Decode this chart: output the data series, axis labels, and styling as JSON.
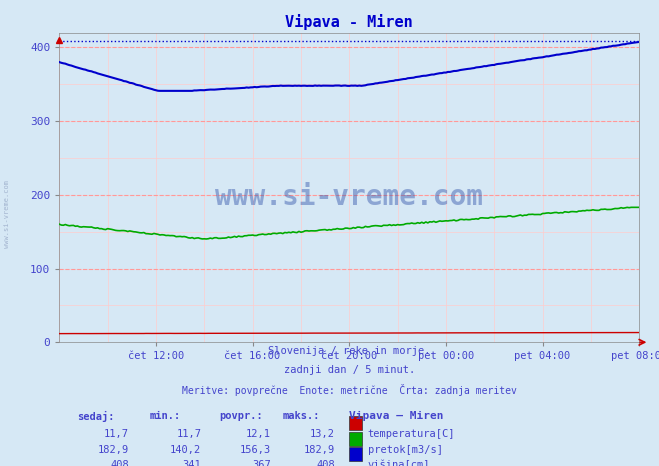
{
  "title": "Vipava - Miren",
  "bg_color": "#d6e8f5",
  "plot_bg_color": "#d6e8f5",
  "grid_color_major": "#ff9999",
  "grid_color_minor": "#ffcccc",
  "xlabel_ticks": [
    "čet 12:00",
    "čet 16:00",
    "čet 20:00",
    "pet 00:00",
    "pet 04:00",
    "pet 08:00"
  ],
  "xlabel_tick_pos": [
    48,
    96,
    144,
    192,
    240,
    288
  ],
  "ylabel_ticks": [
    0,
    100,
    200,
    300,
    400
  ],
  "ylim": [
    0,
    420
  ],
  "xlim": [
    0,
    288
  ],
  "subtitle1": "Slovenija / reke in morje.",
  "subtitle2": "zadnji dan / 5 minut.",
  "subtitle3": "Meritve: povprečne  Enote: metrične  Črta: zadnja meritev",
  "legend_title": "Vipava – Miren",
  "legend_items": [
    {
      "label": "temperatura[C]",
      "color": "#cc0000"
    },
    {
      "label": "pretok[m3/s]",
      "color": "#00aa00"
    },
    {
      "label": "višina[cm]",
      "color": "#0000cc"
    }
  ],
  "table_headers": [
    "sedaj:",
    "min.:",
    "povpr.:",
    "maks.:"
  ],
  "table_rows": [
    [
      "11,7",
      "11,7",
      "12,1",
      "13,2"
    ],
    [
      "182,9",
      "140,2",
      "156,3",
      "182,9"
    ],
    [
      "408",
      "341",
      "367",
      "408"
    ]
  ],
  "text_color": "#4444cc",
  "title_color": "#0000cc",
  "watermark_text": "www.si-vreme.com",
  "sidebar_text": "www.si-vreme.com",
  "n_points": 289,
  "max_dotted_visina": 408
}
